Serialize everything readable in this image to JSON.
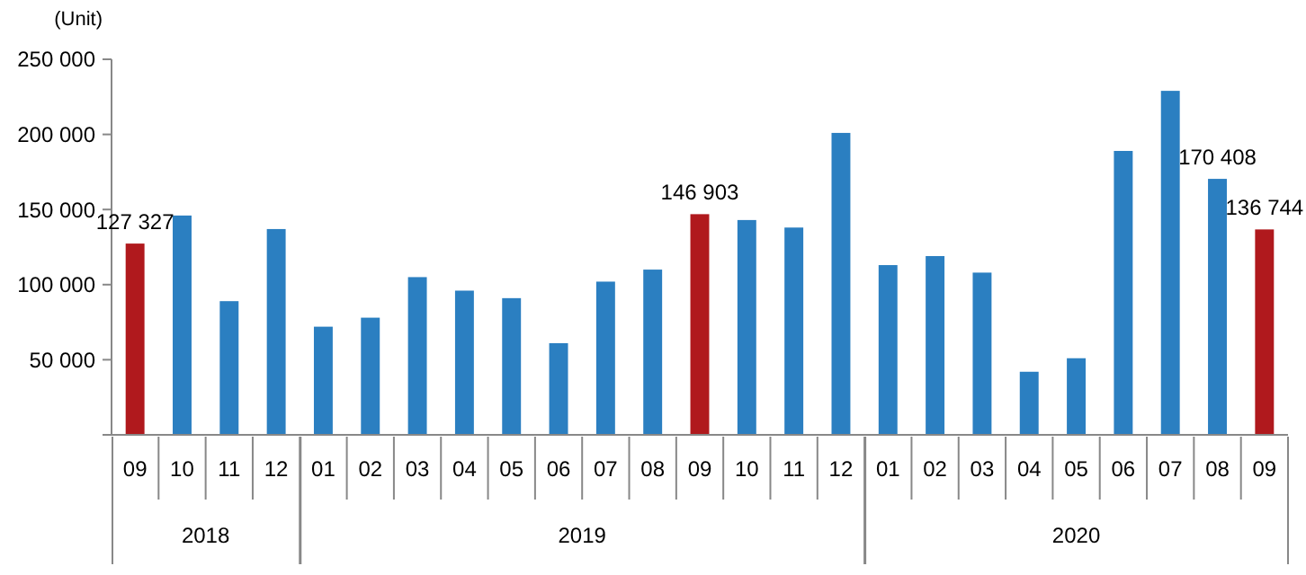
{
  "chart_data": {
    "type": "bar",
    "ylabel": "(Unit)",
    "categories": [
      "09",
      "10",
      "11",
      "12",
      "01",
      "02",
      "03",
      "04",
      "05",
      "06",
      "07",
      "08",
      "09",
      "10",
      "11",
      "12",
      "01",
      "02",
      "03",
      "04",
      "05",
      "06",
      "07",
      "08",
      "09"
    ],
    "values": [
      127327,
      146000,
      89000,
      137000,
      72000,
      78000,
      105000,
      96000,
      91000,
      61000,
      102000,
      110000,
      146903,
      143000,
      138000,
      201000,
      113000,
      119000,
      108000,
      42000,
      51000,
      189000,
      229000,
      170408,
      136744
    ],
    "value_labels": [
      "127 327",
      null,
      null,
      null,
      null,
      null,
      null,
      null,
      null,
      null,
      null,
      null,
      "146 903",
      null,
      null,
      null,
      null,
      null,
      null,
      null,
      null,
      null,
      null,
      "170 408",
      "136 744"
    ],
    "colors": [
      "#b0191d",
      "#2b7fc1",
      "#2b7fc1",
      "#2b7fc1",
      "#2b7fc1",
      "#2b7fc1",
      "#2b7fc1",
      "#2b7fc1",
      "#2b7fc1",
      "#2b7fc1",
      "#2b7fc1",
      "#2b7fc1",
      "#b0191d",
      "#2b7fc1",
      "#2b7fc1",
      "#2b7fc1",
      "#2b7fc1",
      "#2b7fc1",
      "#2b7fc1",
      "#2b7fc1",
      "#2b7fc1",
      "#2b7fc1",
      "#2b7fc1",
      "#2b7fc1",
      "#b0191d"
    ],
    "ylim": [
      0,
      250000
    ],
    "yticks": [
      {
        "value": 0,
        "label": null
      },
      {
        "value": 50000,
        "label": "50 000"
      },
      {
        "value": 100000,
        "label": "100 000"
      },
      {
        "value": 150000,
        "label": "150 000"
      },
      {
        "value": 200000,
        "label": "200 000"
      },
      {
        "value": 250000,
        "label": "250 000"
      }
    ],
    "annotations": [
      "2018",
      "2019",
      "2020"
    ],
    "grid": false
  }
}
